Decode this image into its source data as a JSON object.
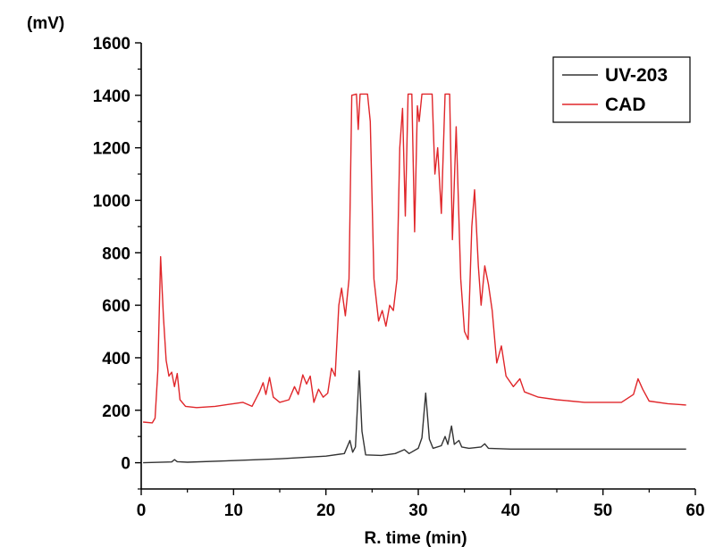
{
  "chart_data": {
    "type": "line",
    "title": "",
    "xlabel": "R. time (min)",
    "ylabel": "(mV)",
    "xlim": [
      0,
      60
    ],
    "ylim": [
      -100,
      1600
    ],
    "x_ticks": [
      0,
      10,
      20,
      30,
      40,
      50,
      60
    ],
    "x_tick_labels": [
      "0",
      "10",
      "20",
      "30",
      "40",
      "50",
      "60"
    ],
    "y_ticks": [
      0,
      200,
      400,
      600,
      800,
      1000,
      1200,
      1400,
      1600
    ],
    "y_tick_labels": [
      "0",
      "200",
      "400",
      "600",
      "800",
      "1000",
      "1200",
      "1400",
      "1600"
    ],
    "grid": false,
    "legend": {
      "position": "top-right"
    },
    "series": [
      {
        "name": "UV-203",
        "color": "#333333",
        "points": [
          [
            0.2,
            0
          ],
          [
            3.3,
            3
          ],
          [
            3.6,
            12
          ],
          [
            3.9,
            4
          ],
          [
            5,
            2
          ],
          [
            10,
            8
          ],
          [
            15,
            15
          ],
          [
            20,
            25
          ],
          [
            22.0,
            35
          ],
          [
            22.6,
            85
          ],
          [
            22.9,
            40
          ],
          [
            23.2,
            60
          ],
          [
            23.6,
            350
          ],
          [
            23.9,
            120
          ],
          [
            24.3,
            30
          ],
          [
            26,
            28
          ],
          [
            27.5,
            35
          ],
          [
            28.5,
            50
          ],
          [
            29,
            35
          ],
          [
            30.0,
            55
          ],
          [
            30.4,
            95
          ],
          [
            30.8,
            265
          ],
          [
            31.2,
            90
          ],
          [
            31.6,
            55
          ],
          [
            32.5,
            65
          ],
          [
            32.9,
            100
          ],
          [
            33.2,
            70
          ],
          [
            33.6,
            140
          ],
          [
            33.9,
            70
          ],
          [
            34.4,
            85
          ],
          [
            34.7,
            60
          ],
          [
            35.5,
            55
          ],
          [
            36.8,
            60
          ],
          [
            37.2,
            72
          ],
          [
            37.6,
            55
          ],
          [
            40,
            52
          ],
          [
            45,
            52
          ],
          [
            50,
            52
          ],
          [
            55,
            52
          ],
          [
            59,
            52
          ]
        ]
      },
      {
        "name": "CAD",
        "color": "#e0262a",
        "points": [
          [
            0.2,
            155
          ],
          [
            1.2,
            152
          ],
          [
            1.5,
            170
          ],
          [
            1.8,
            350
          ],
          [
            2.1,
            785
          ],
          [
            2.4,
            560
          ],
          [
            2.7,
            390
          ],
          [
            3.0,
            330
          ],
          [
            3.3,
            345
          ],
          [
            3.6,
            290
          ],
          [
            3.9,
            340
          ],
          [
            4.2,
            240
          ],
          [
            4.8,
            215
          ],
          [
            6,
            210
          ],
          [
            8,
            215
          ],
          [
            10,
            225
          ],
          [
            11,
            230
          ],
          [
            12,
            215
          ],
          [
            12.8,
            270
          ],
          [
            13.2,
            305
          ],
          [
            13.5,
            260
          ],
          [
            13.9,
            325
          ],
          [
            14.3,
            250
          ],
          [
            15,
            230
          ],
          [
            16,
            240
          ],
          [
            16.6,
            290
          ],
          [
            17.0,
            260
          ],
          [
            17.5,
            335
          ],
          [
            17.9,
            300
          ],
          [
            18.3,
            330
          ],
          [
            18.7,
            230
          ],
          [
            19.2,
            280
          ],
          [
            19.7,
            250
          ],
          [
            20.2,
            265
          ],
          [
            20.6,
            360
          ],
          [
            21.0,
            330
          ],
          [
            21.4,
            600
          ],
          [
            21.7,
            665
          ],
          [
            22.1,
            560
          ],
          [
            22.5,
            700
          ],
          [
            22.8,
            1400
          ],
          [
            23.3,
            1405
          ],
          [
            23.5,
            1270
          ],
          [
            23.7,
            1405
          ],
          [
            24.5,
            1405
          ],
          [
            24.8,
            1300
          ],
          [
            25.2,
            700
          ],
          [
            25.7,
            540
          ],
          [
            26.1,
            580
          ],
          [
            26.5,
            520
          ],
          [
            26.9,
            600
          ],
          [
            27.3,
            580
          ],
          [
            27.7,
            700
          ],
          [
            28.0,
            1200
          ],
          [
            28.3,
            1350
          ],
          [
            28.6,
            940
          ],
          [
            28.9,
            1405
          ],
          [
            29.3,
            1405
          ],
          [
            29.6,
            880
          ],
          [
            29.9,
            1360
          ],
          [
            30.1,
            1300
          ],
          [
            30.4,
            1405
          ],
          [
            31.5,
            1405
          ],
          [
            31.8,
            1100
          ],
          [
            32.1,
            1200
          ],
          [
            32.5,
            950
          ],
          [
            32.9,
            1405
          ],
          [
            33.4,
            1405
          ],
          [
            33.7,
            850
          ],
          [
            34.1,
            1280
          ],
          [
            34.6,
            700
          ],
          [
            35.0,
            500
          ],
          [
            35.4,
            470
          ],
          [
            35.8,
            900
          ],
          [
            36.1,
            1040
          ],
          [
            36.5,
            750
          ],
          [
            36.8,
            600
          ],
          [
            37.2,
            750
          ],
          [
            37.6,
            680
          ],
          [
            38.0,
            580
          ],
          [
            38.5,
            380
          ],
          [
            39.0,
            445
          ],
          [
            39.5,
            330
          ],
          [
            40.3,
            290
          ],
          [
            41.0,
            320
          ],
          [
            41.5,
            270
          ],
          [
            43,
            250
          ],
          [
            45,
            240
          ],
          [
            48,
            230
          ],
          [
            50,
            230
          ],
          [
            52,
            230
          ],
          [
            53.3,
            260
          ],
          [
            53.8,
            320
          ],
          [
            54.3,
            280
          ],
          [
            55,
            235
          ],
          [
            57,
            225
          ],
          [
            59,
            220
          ]
        ]
      }
    ]
  }
}
